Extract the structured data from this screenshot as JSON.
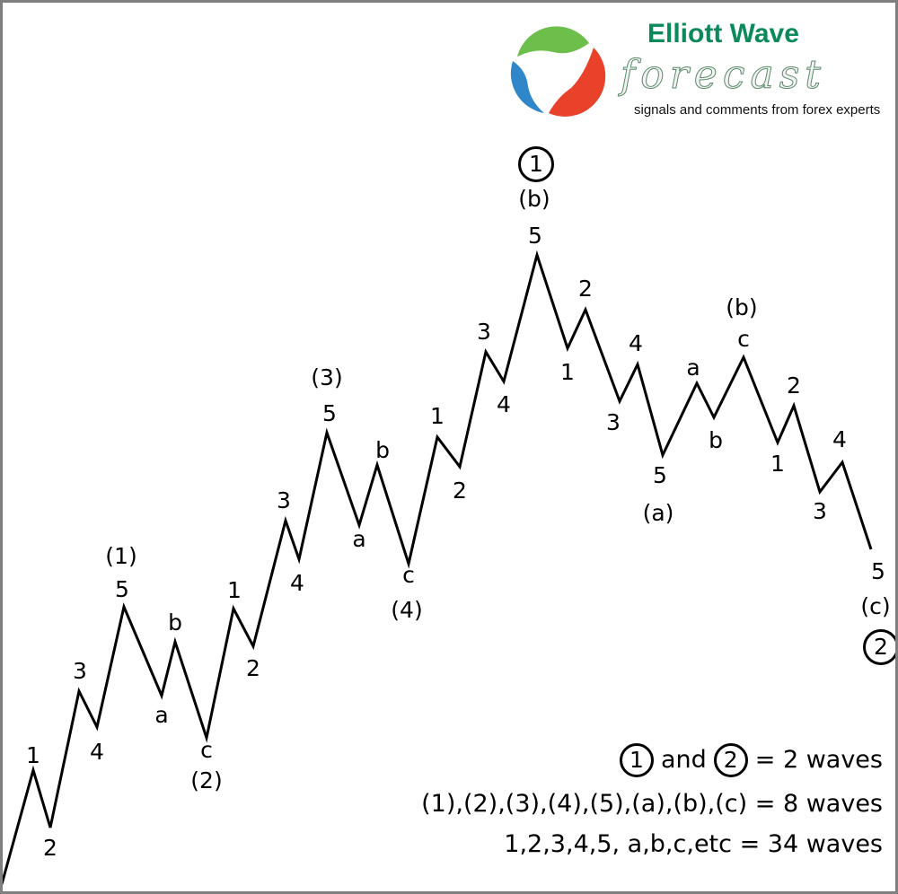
{
  "logo": {
    "title": "Elliott Wave",
    "script": "forecast",
    "tagline": "signals and comments from forex experts",
    "colors": {
      "green": "#0a8a5a",
      "swirl_green": "#6cbf4a",
      "swirl_red": "#e8432a",
      "swirl_blue": "#2f86c8"
    }
  },
  "wave_labels": [
    "1",
    "2",
    "3",
    "4",
    "(1)",
    "5",
    "a",
    "b",
    "c",
    "(2)",
    "1",
    "2",
    "3",
    "4",
    "(3)",
    "5",
    "a",
    "b",
    "c",
    "(4)",
    "1",
    "2",
    "3",
    "4",
    "5",
    "(b)",
    "2",
    "1",
    "4",
    "3",
    "5",
    "(a)",
    "a",
    "b",
    "c",
    "(b)",
    "2",
    "1",
    "4",
    "3",
    "5",
    "(c)"
  ],
  "circled": [
    "1",
    "2"
  ],
  "legend": {
    "line1_circle_a": "1",
    "line1_and": "and",
    "line1_circle_b": "2",
    "line1_rest": "= 2 waves",
    "line2": "(1),(2),(3),(4),(5),(a),(b),(c) = 8 waves",
    "line3": "1,2,3,4,5, a,b,c,etc = 34 waves"
  },
  "colors": {
    "line": "#000000",
    "border": "#7f7f7f"
  }
}
